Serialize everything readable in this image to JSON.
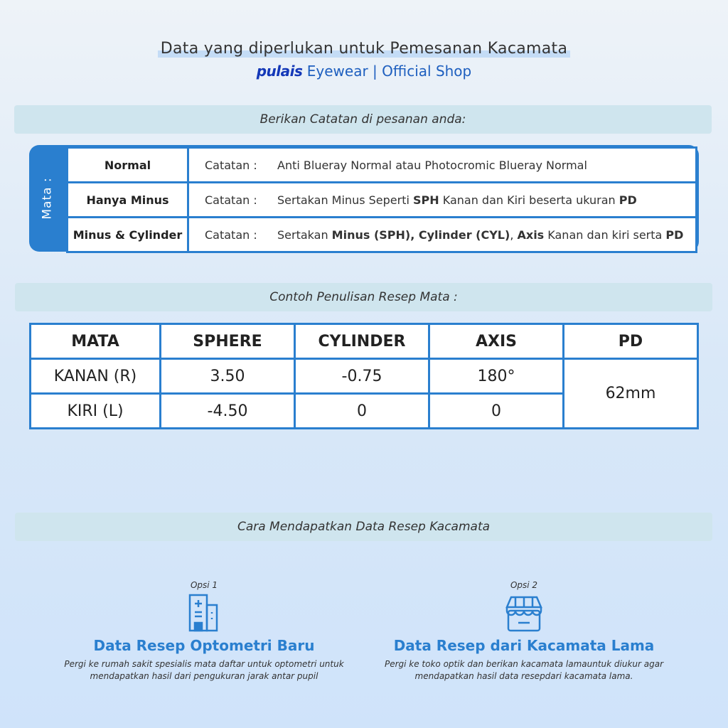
{
  "header": {
    "title": "Data yang diperlukan untuk Pemesanan Kacamata",
    "brand": "pulais",
    "subtitle": "Eyewear | Official Shop"
  },
  "notes_band": "Berikan Catatan di pesanan anda:",
  "notes": {
    "side_label": "Mata :",
    "label": "Catatan :",
    "rows": [
      {
        "type": "Normal",
        "segments": [
          {
            "t": "Anti Blueray Normal atau Photocromic Blueray Normal",
            "b": false
          }
        ]
      },
      {
        "type": "Hanya Minus",
        "segments": [
          {
            "t": "Sertakan Minus Seperti ",
            "b": false
          },
          {
            "t": "SPH",
            "b": true
          },
          {
            "t": " Kanan dan Kiri beserta ukuran ",
            "b": false
          },
          {
            "t": "PD",
            "b": true
          }
        ]
      },
      {
        "type": "Minus & Cylinder",
        "segments": [
          {
            "t": "Sertakan ",
            "b": false
          },
          {
            "t": "Minus (SPH), Cylinder (CYL)",
            "b": true
          },
          {
            "t": ", ",
            "b": false
          },
          {
            "t": "Axis",
            "b": true
          },
          {
            "t": " Kanan dan kiri serta ",
            "b": false
          },
          {
            "t": "PD",
            "b": true
          }
        ]
      }
    ]
  },
  "example_band": "Contoh Penulisan Resep Mata :",
  "prescription": {
    "headers": [
      "MATA",
      "SPHERE",
      "CYLINDER",
      "AXIS",
      "PD"
    ],
    "rows": [
      [
        "KANAN (R)",
        "3.50",
        "-0.75",
        "180°"
      ],
      [
        "KIRI (L)",
        "-4.50",
        "0",
        "0"
      ]
    ],
    "pd": "62mm"
  },
  "howto_band": "Cara Mendapatkan Data Resep Kacamata",
  "options": [
    {
      "label": "Opsi 1",
      "icon": "hospital-icon",
      "title": "Data Resep Optometri Baru",
      "desc": "Pergi ke rumah sakit spesialis mata daftar untuk optometri untuk mendapatkan  hasil dari pengukuran jarak antar pupil"
    },
    {
      "label": "Opsi 2",
      "icon": "store-icon",
      "title": "Data Resep dari Kacamata Lama",
      "desc": "Pergi ke toko optik dan berikan kacamata lamauntuk diukur agar mendapatkan hasil data resepdari kacamata lama."
    }
  ],
  "colors": {
    "accent": "#2a7fcf",
    "brand": "#1438b8",
    "band": "#cfe5ee"
  }
}
